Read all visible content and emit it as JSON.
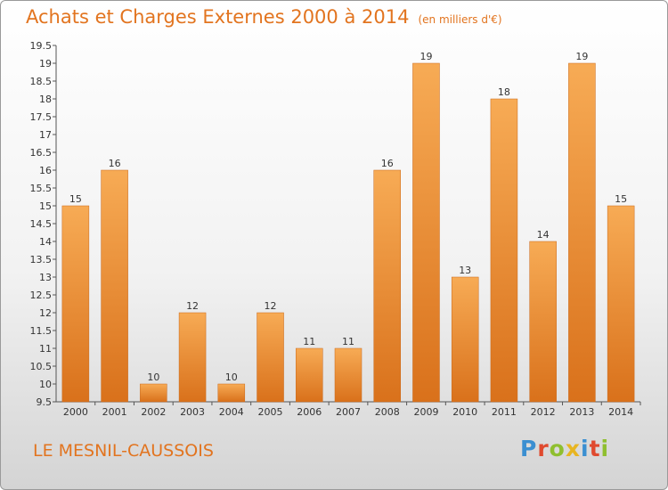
{
  "header": {
    "title": "Achats et Charges Externes 2000 à 2014",
    "unit": "(en milliers d'€)"
  },
  "footer": {
    "city": "LE MESNIL-CAUSSOIS",
    "logo": [
      "P",
      "r",
      "o",
      "x",
      "i",
      "t",
      "i"
    ],
    "logo_colors": [
      "#3b8fd1",
      "#e04a2f",
      "#8fbf2f",
      "#e8b521",
      "#3b8fd1",
      "#e04a2f",
      "#8fbf2f"
    ]
  },
  "chart_data": {
    "type": "bar",
    "title": "Achats et Charges Externes 2000 à 2014",
    "categories": [
      "2000",
      "2001",
      "2002",
      "2003",
      "2004",
      "2005",
      "2006",
      "2007",
      "2008",
      "2009",
      "2010",
      "2011",
      "2012",
      "2013",
      "2014"
    ],
    "values": [
      15,
      16,
      10,
      12,
      10,
      12,
      11,
      11,
      16,
      19,
      13,
      18,
      14,
      19,
      15
    ],
    "ylim": [
      9.5,
      19.5
    ],
    "yticks": [
      9.5,
      10,
      10.5,
      11,
      11.5,
      12,
      12.5,
      13,
      13.5,
      14,
      14.5,
      15,
      15.5,
      16,
      16.5,
      17,
      17.5,
      18,
      18.5,
      19,
      19.5
    ],
    "grid": false,
    "bar_color": "#f19a40"
  }
}
